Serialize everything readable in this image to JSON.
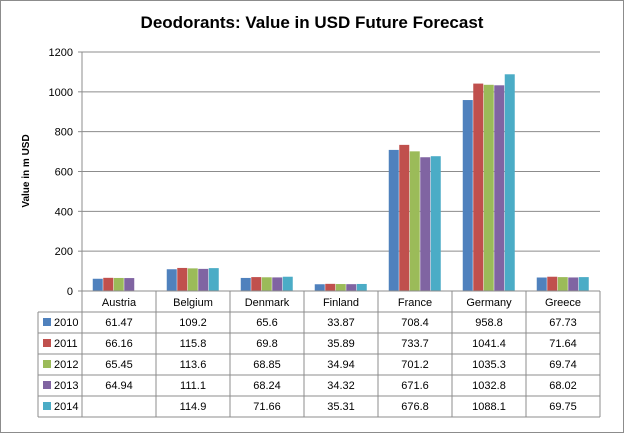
{
  "chart_data": {
    "type": "bar",
    "title": "Deodorants: Value in USD Future Forecast",
    "ylabel": "Value in m USD",
    "xlabel": "",
    "ylim": [
      0,
      1200
    ],
    "yticks": [
      0,
      200,
      400,
      600,
      800,
      1000,
      1200
    ],
    "grid": true,
    "legend": "table-below",
    "categories": [
      "Austria",
      "Belgium",
      "Denmark",
      "Finland",
      "France",
      "Germany",
      "Greece"
    ],
    "series": [
      {
        "name": "2010",
        "color": "#4f81bd",
        "values": [
          61.47,
          109.2,
          65.6,
          33.87,
          708.4,
          958.8,
          67.73
        ]
      },
      {
        "name": "2011",
        "color": "#c0504d",
        "values": [
          66.16,
          115.8,
          69.8,
          35.89,
          733.7,
          1041.4,
          71.64
        ]
      },
      {
        "name": "2012",
        "color": "#9bbb59",
        "values": [
          65.45,
          113.6,
          68.85,
          34.94,
          701.2,
          1035.3,
          69.74
        ]
      },
      {
        "name": "2013",
        "color": "#8064a2",
        "values": [
          64.94,
          111.1,
          68.24,
          34.32,
          671.6,
          1032.8,
          68.02
        ]
      },
      {
        "name": "2014",
        "color": "#4bacc6",
        "values": [
          null,
          114.9,
          71.66,
          35.31,
          676.8,
          1088.1,
          69.75
        ]
      }
    ],
    "table_text": [
      [
        "61.47",
        "109.2",
        "65.6",
        "33.87",
        "708.4",
        "958.8",
        "67.73"
      ],
      [
        "66.16",
        "115.8",
        "69.8",
        "35.89",
        "733.7",
        "1041.4",
        "71.64"
      ],
      [
        "65.45",
        "113.6",
        "68.85",
        "34.94",
        "701.2",
        "1035.3",
        "69.74"
      ],
      [
        "64.94",
        "111.1",
        "68.24",
        "34.32",
        "671.6",
        "1032.8",
        "68.02"
      ],
      [
        "",
        "114.9",
        "71.66",
        "35.31",
        "676.8",
        "1088.1",
        "69.75"
      ]
    ]
  }
}
